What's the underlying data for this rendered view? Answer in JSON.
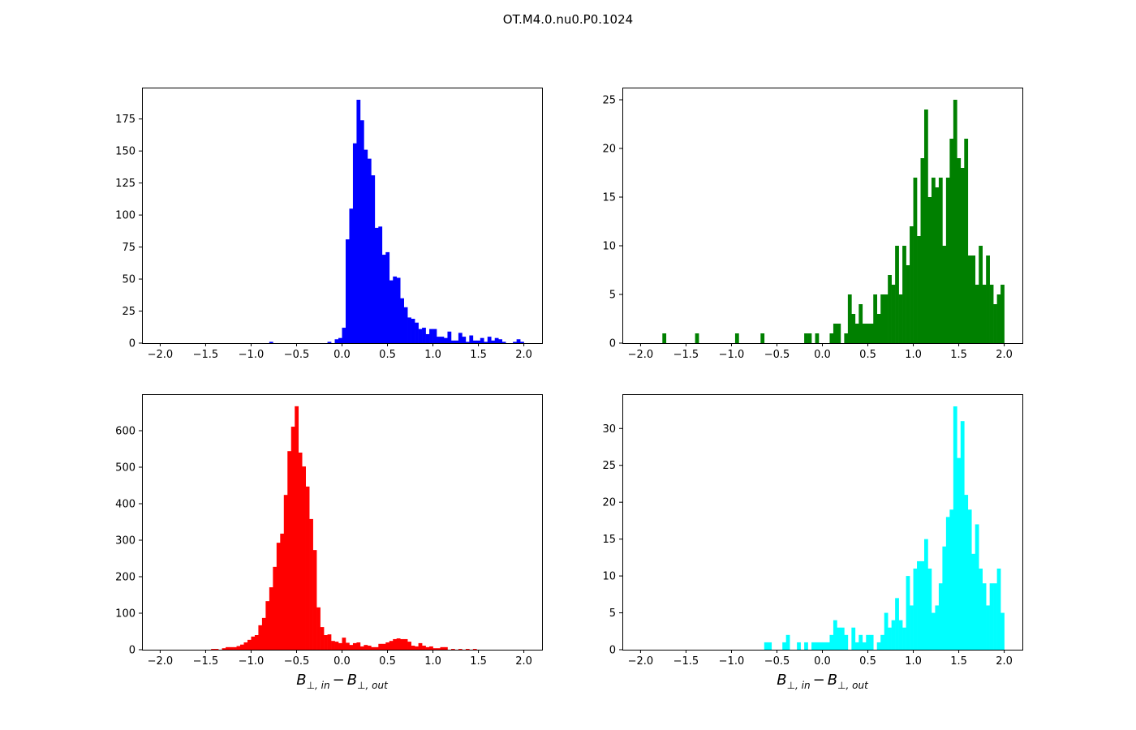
{
  "title": "OT.M4.0.nu0.P0.1024",
  "xlabel": {
    "b1": "B",
    "sub1": "⊥, in",
    "op": "−",
    "b2": "B",
    "sub2": "⊥, out"
  },
  "chart_data": [
    {
      "type": "bar",
      "panel": "top-left",
      "color": "#0000ff",
      "bin_start": -2.0,
      "bin_width": 0.04,
      "xlim": [
        -2.2,
        2.2
      ],
      "ylim": [
        0,
        199.5
      ],
      "xticks": [
        -2.0,
        -1.5,
        -1.0,
        -0.5,
        0.0,
        0.5,
        1.0,
        1.5,
        2.0
      ],
      "yticks": [
        0,
        25,
        50,
        75,
        100,
        125,
        150,
        175
      ],
      "xlabel": "",
      "counts": [
        0,
        0,
        0,
        0,
        0,
        0,
        0,
        0,
        0,
        0,
        0,
        0,
        0,
        0,
        0,
        0,
        0,
        0,
        0,
        0,
        0,
        0,
        0,
        0,
        0,
        0,
        0,
        0,
        0,
        0,
        1,
        0,
        0,
        0,
        0,
        0,
        0,
        0,
        0,
        0,
        0,
        0,
        0,
        0,
        0,
        0,
        1,
        0,
        3,
        4,
        12,
        81,
        105,
        156,
        190,
        174,
        151,
        144,
        131,
        90,
        91,
        69,
        71,
        49,
        52,
        51,
        35,
        28,
        20,
        19,
        16,
        11,
        12,
        7,
        11,
        11,
        5,
        5,
        4,
        9,
        2,
        2,
        8,
        5,
        1,
        6,
        2,
        2,
        4,
        1,
        5,
        2,
        4,
        3,
        1,
        0,
        0,
        1,
        3,
        1
      ]
    },
    {
      "type": "bar",
      "panel": "top-right",
      "color": "#008000",
      "bin_start": -2.0,
      "bin_width": 0.04,
      "xlim": [
        -2.2,
        2.2
      ],
      "ylim": [
        0,
        26.25
      ],
      "xticks": [
        -2.0,
        -1.5,
        -1.0,
        -0.5,
        0.0,
        0.5,
        1.0,
        1.5,
        2.0
      ],
      "yticks": [
        0,
        5,
        10,
        15,
        20,
        25
      ],
      "xlabel": "",
      "counts": [
        0,
        0,
        0,
        0,
        0,
        0,
        1,
        0,
        0,
        0,
        0,
        0,
        0,
        0,
        0,
        1,
        0,
        0,
        0,
        0,
        0,
        0,
        0,
        0,
        0,
        0,
        1,
        0,
        0,
        0,
        0,
        0,
        0,
        1,
        0,
        0,
        0,
        0,
        0,
        0,
        0,
        0,
        0,
        0,
        0,
        1,
        1,
        0,
        1,
        0,
        0,
        0,
        1,
        2,
        2,
        0,
        1,
        5,
        3,
        2,
        4,
        2,
        2,
        2,
        5,
        3,
        5,
        5,
        7,
        6,
        10,
        5,
        10,
        8,
        12,
        17,
        11,
        19,
        24,
        15,
        17,
        16,
        17,
        10,
        17,
        21,
        25,
        19,
        18,
        21,
        9,
        9,
        6,
        10,
        6,
        9,
        6,
        4,
        5,
        6
      ]
    },
    {
      "type": "bar",
      "panel": "bottom-left",
      "color": "#ff0000",
      "bin_start": -2.0,
      "bin_width": 0.04,
      "xlim": [
        -2.2,
        2.2
      ],
      "ylim": [
        0,
        700
      ],
      "xticks": [
        -2.0,
        -1.5,
        -1.0,
        -0.5,
        0.0,
        0.5,
        1.0,
        1.5,
        2.0
      ],
      "yticks": [
        0,
        100,
        200,
        300,
        400,
        500,
        600
      ],
      "xlabel": "B⊥,in − B⊥,out",
      "counts": [
        0,
        0,
        0,
        0,
        0,
        0,
        0,
        0,
        0,
        0,
        0,
        0,
        0,
        0,
        2,
        2,
        0,
        4,
        7,
        7,
        7,
        10,
        14,
        20,
        27,
        36,
        40,
        67,
        87,
        133,
        171,
        227,
        293,
        318,
        424,
        544,
        611,
        667,
        540,
        502,
        447,
        358,
        273,
        116,
        62,
        40,
        42,
        24,
        22,
        18,
        33,
        19,
        13,
        18,
        20,
        9,
        13,
        11,
        7,
        7,
        16,
        16,
        20,
        24,
        29,
        31,
        29,
        29,
        22,
        11,
        9,
        18,
        11,
        7,
        9,
        4,
        4,
        7,
        7,
        0,
        2,
        0,
        2,
        0,
        2,
        0,
        2,
        0,
        0,
        0,
        0,
        0,
        0,
        0,
        0,
        0,
        0,
        0,
        0,
        0
      ]
    },
    {
      "type": "bar",
      "panel": "bottom-right",
      "color": "#00ffff",
      "bin_start": -2.0,
      "bin_width": 0.04,
      "xlim": [
        -2.2,
        2.2
      ],
      "ylim": [
        0,
        34.65
      ],
      "xticks": [
        -2.0,
        -1.5,
        -1.0,
        -0.5,
        0.0,
        0.5,
        1.0,
        1.5,
        2.0
      ],
      "yticks": [
        0,
        5,
        10,
        15,
        20,
        25,
        30
      ],
      "xlabel": "B⊥,in − B⊥,out",
      "counts": [
        0,
        0,
        0,
        0,
        0,
        0,
        0,
        0,
        0,
        0,
        0,
        0,
        0,
        0,
        0,
        0,
        0,
        0,
        0,
        0,
        0,
        0,
        0,
        0,
        0,
        0,
        0,
        0,
        0,
        0,
        0,
        0,
        0,
        0,
        1,
        1,
        0,
        0,
        0,
        1,
        2,
        0,
        0,
        1,
        0,
        1,
        0,
        1,
        1,
        1,
        1,
        1,
        2,
        4,
        3,
        3,
        2,
        0,
        3,
        1,
        2,
        1,
        2,
        2,
        0,
        1,
        2,
        5,
        3,
        4,
        7,
        4,
        3,
        10,
        6,
        11,
        12,
        12,
        15,
        11,
        5,
        6,
        9,
        14,
        18,
        19,
        33,
        26,
        31,
        21,
        19,
        13,
        17,
        11,
        9,
        6,
        9,
        9,
        11,
        5
      ]
    }
  ]
}
